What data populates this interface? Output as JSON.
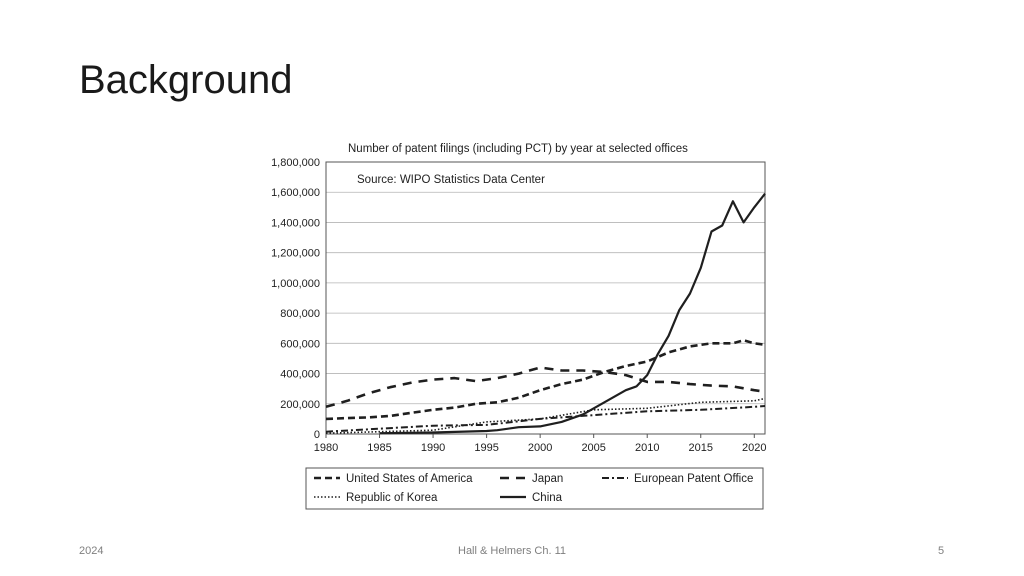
{
  "slide": {
    "title": "Background",
    "footer_left": "2024",
    "footer_center": "Hall & Helmers Ch. 11",
    "page_number": "5"
  },
  "chart_data": {
    "type": "line",
    "title": "Number of patent filings (including PCT) by year at selected offices",
    "source": "Source: WIPO Statistics Data Center",
    "xlabel": "",
    "ylabel": "",
    "xlim": [
      1980,
      2021
    ],
    "ylim": [
      0,
      1800000
    ],
    "xticks": [
      1980,
      1985,
      1990,
      1995,
      2000,
      2005,
      2010,
      2015,
      2020
    ],
    "yticks": [
      0,
      200000,
      400000,
      600000,
      800000,
      1000000,
      1200000,
      1400000,
      1600000,
      1800000
    ],
    "ytick_labels": [
      "0",
      "200,000",
      "400,000",
      "600,000",
      "800,000",
      "1,000,000",
      "1,200,000",
      "1,400,000",
      "1,600,000",
      "1,800,000"
    ],
    "grid": true,
    "legend_position": "bottom",
    "series": [
      {
        "name": "United States of America",
        "style": "dash-heavy",
        "x": [
          1980,
          1982,
          1984,
          1986,
          1988,
          1990,
          1992,
          1994,
          1996,
          1998,
          2000,
          2002,
          2004,
          2006,
          2008,
          2010,
          2012,
          2014,
          2016,
          2018,
          2019,
          2020,
          2021
        ],
        "values": [
          100000,
          105000,
          110000,
          120000,
          140000,
          160000,
          175000,
          200000,
          210000,
          240000,
          290000,
          330000,
          360000,
          410000,
          450000,
          480000,
          540000,
          580000,
          600000,
          600000,
          620000,
          600000,
          590000
        ]
      },
      {
        "name": "Japan",
        "style": "dash",
        "x": [
          1980,
          1982,
          1984,
          1986,
          1988,
          1990,
          1992,
          1994,
          1996,
          1998,
          2000,
          2002,
          2004,
          2006,
          2008,
          2010,
          2012,
          2014,
          2016,
          2018,
          2020,
          2021
        ],
        "values": [
          180000,
          220000,
          270000,
          310000,
          340000,
          360000,
          370000,
          350000,
          370000,
          400000,
          440000,
          420000,
          420000,
          410000,
          390000,
          345000,
          345000,
          330000,
          320000,
          315000,
          290000,
          280000
        ]
      },
      {
        "name": "European Patent Office",
        "style": "dash-dot",
        "x": [
          1980,
          1985,
          1990,
          1995,
          2000,
          2005,
          2010,
          2015,
          2020,
          2021
        ],
        "values": [
          15000,
          35000,
          55000,
          60000,
          100000,
          125000,
          150000,
          160000,
          180000,
          185000
        ]
      },
      {
        "name": "Republic of Korea",
        "style": "dotted",
        "x": [
          1980,
          1985,
          1990,
          1995,
          2000,
          2005,
          2010,
          2015,
          2020,
          2021
        ],
        "values": [
          5000,
          15000,
          25000,
          80000,
          100000,
          160000,
          170000,
          210000,
          220000,
          235000
        ]
      },
      {
        "name": "China",
        "style": "solid",
        "x": [
          1985,
          1990,
          1995,
          1996,
          1998,
          2000,
          2002,
          2004,
          2006,
          2008,
          2009,
          2010,
          2011,
          2012,
          2013,
          2014,
          2015,
          2016,
          2017,
          2018,
          2019,
          2020,
          2021
        ],
        "values": [
          5000,
          10000,
          20000,
          25000,
          45000,
          50000,
          80000,
          130000,
          210000,
          290000,
          315000,
          390000,
          530000,
          650000,
          820000,
          930000,
          1100000,
          1340000,
          1380000,
          1540000,
          1400000,
          1500000,
          1590000
        ]
      }
    ]
  }
}
